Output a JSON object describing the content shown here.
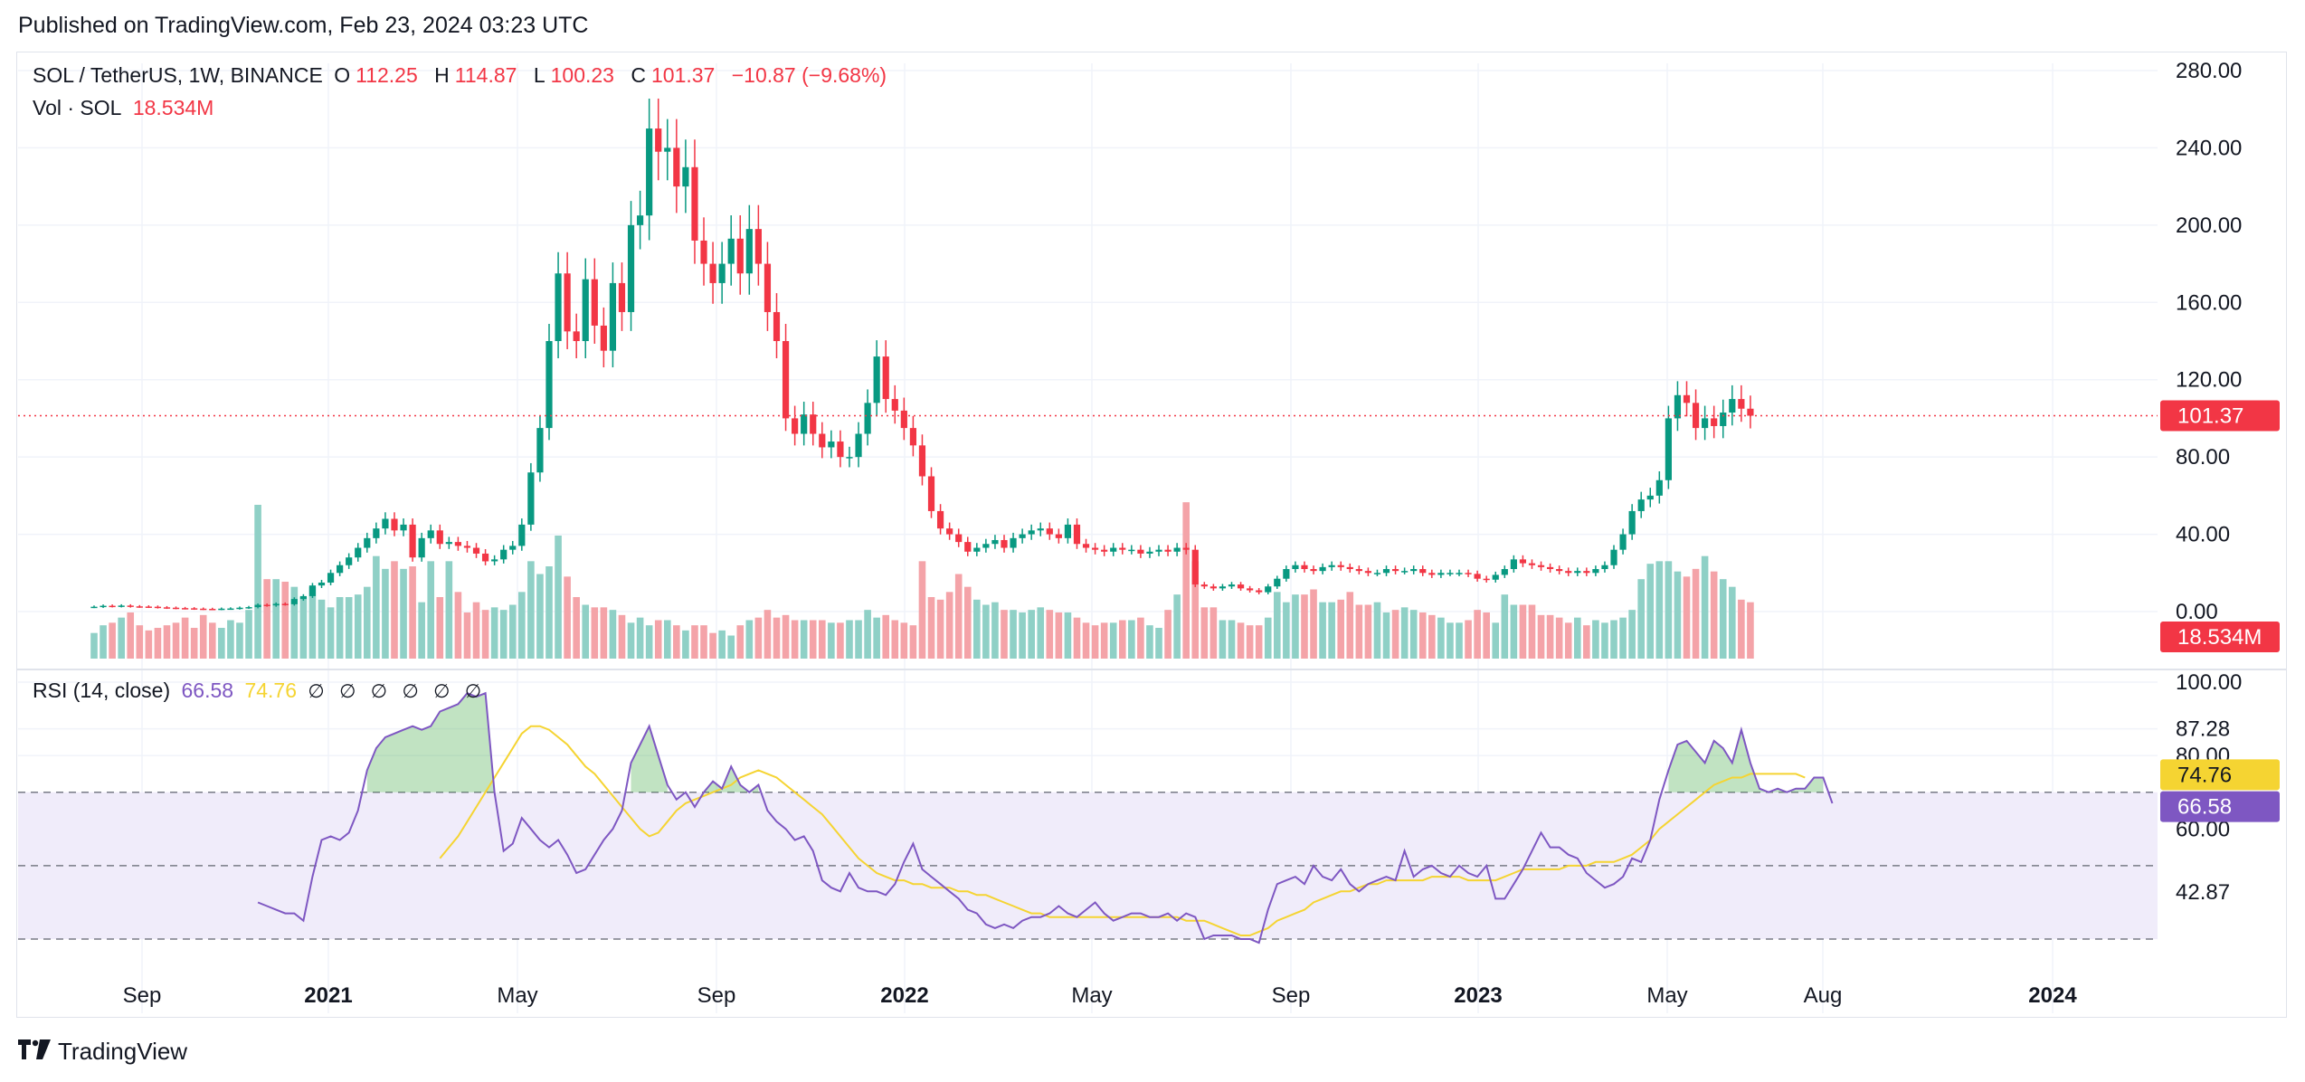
{
  "published": "Published on TradingView.com, Feb 23, 2024 03:23 UTC",
  "footer": {
    "brand": "TradingView",
    "logo_icon": "tradingview-logo-icon"
  },
  "legend": {
    "symbol": "SOL / TetherUS, 1W, BINANCE",
    "o_label": "O",
    "o_value": "112.25",
    "h_label": "H",
    "h_value": "114.87",
    "l_label": "L",
    "l_value": "100.23",
    "c_label": "C",
    "c_value": "101.37",
    "change": "−10.87 (−9.68%)",
    "vol_label": "Vol · SOL",
    "vol_value": "18.534M",
    "rsi_label": "RSI (14, close)",
    "rsi_value": "66.58",
    "rsi_ma_value": "74.76",
    "na_values": [
      "∅",
      "∅",
      "∅",
      "∅",
      "∅",
      "∅"
    ]
  },
  "colors": {
    "up": "#089981",
    "down": "#f23645",
    "up_vol": "#8fd0c6",
    "down_vol": "#f4a3a8",
    "rsi": "#7e57c2",
    "rsi_ma": "#f5d432",
    "band_fill": "#f0ecfa"
  },
  "chart_data": [
    {
      "type": "candlestick",
      "title": "SOL / TetherUS, 1W, BINANCE",
      "x_tick_labels": [
        "Sep",
        "2021",
        "May",
        "Sep",
        "2022",
        "May",
        "Sep",
        "2023",
        "May",
        "Aug",
        "2024"
      ],
      "y_tick_labels": [
        "280.00",
        "240.00",
        "200.00",
        "160.00",
        "120.00",
        "80.00",
        "40.00",
        "0.00"
      ],
      "ylim": [
        -20,
        290
      ],
      "last_price": 101.37,
      "last_price_label": "101.37",
      "volume_label": "18.534M",
      "weeks": 183,
      "closes": [
        2.5,
        3.0,
        2.8,
        3.1,
        2.7,
        2.6,
        2.5,
        2.2,
        2.0,
        1.8,
        1.7,
        1.5,
        1.4,
        1.3,
        1.5,
        1.6,
        2.0,
        2.3,
        3.5,
        3.2,
        4.0,
        3.8,
        6.5,
        8.0,
        13.5,
        15.0,
        20.0,
        24.0,
        28.0,
        33.0,
        38.0,
        43.0,
        48.0,
        42.0,
        45.0,
        28.0,
        38.0,
        42.0,
        35.0,
        36.0,
        34.0,
        33.0,
        30.0,
        26.0,
        27.0,
        32.0,
        34.0,
        45.0,
        72.0,
        95.0,
        140.0,
        175.0,
        145.0,
        140.0,
        172.0,
        148.0,
        135.0,
        170.0,
        155.0,
        200.0,
        205.0,
        250.0,
        238.0,
        240.0,
        220.0,
        230.0,
        192.0,
        180.0,
        170.0,
        180.0,
        193.0,
        175.0,
        198.0,
        180.0,
        155.0,
        140.0,
        100.0,
        92.0,
        102.0,
        92.0,
        85.0,
        88.0,
        80.0,
        80.0,
        92.0,
        108.0,
        132.0,
        110.0,
        104.0,
        95.0,
        86.0,
        70.0,
        52.0,
        43.0,
        40.0,
        36.0,
        31.0,
        33.0,
        35.0,
        37.0,
        33.0,
        38.0,
        40.0,
        42.0,
        43.0,
        40.0,
        38.0,
        45.0,
        35.0,
        33.0,
        32.0,
        31.0,
        33.0,
        32.0,
        32.0,
        30.0,
        31.0,
        32.0,
        31.0,
        33.0,
        32.0,
        14.0,
        13.0,
        12.0,
        13.0,
        14.0,
        12.0,
        11.0,
        10.0,
        13.0,
        17.0,
        22.0,
        24.0,
        22.0,
        21.0,
        23.0,
        24.0,
        23.0,
        22.0,
        21.0,
        20.0,
        20.0,
        22.0,
        21.0,
        21.0,
        22.0,
        20.0,
        19.0,
        20.0,
        20.0,
        20.0,
        19.5,
        17.0,
        16.5,
        19.0,
        22.0,
        27.0,
        25.0,
        24.0,
        23.0,
        22.0,
        21.0,
        20.0,
        21.0,
        20.0,
        22.0,
        24.0,
        32.0,
        40.0,
        52.0,
        58.0,
        60.0,
        68.0,
        100.0,
        112.0,
        108.0,
        95.0,
        100.0,
        96.0,
        103.0,
        110.0,
        105.0,
        101.37
      ],
      "volumes": [
        10,
        13,
        14,
        16,
        18,
        13,
        11,
        12,
        13,
        14,
        16,
        12,
        17,
        14,
        12,
        15,
        14,
        19,
        60,
        31,
        31,
        30,
        28,
        24,
        28,
        23,
        20,
        24,
        24,
        25,
        28,
        40,
        35,
        38,
        35,
        36,
        22,
        38,
        24,
        38,
        26,
        18,
        22,
        19,
        20,
        19,
        21,
        26,
        38,
        33,
        36,
        48,
        32,
        24,
        21,
        20,
        20,
        19,
        17,
        14,
        16,
        13,
        15,
        15,
        13,
        11,
        13,
        13,
        10,
        11,
        9,
        13,
        15,
        16,
        19,
        16,
        17,
        15,
        15,
        15,
        15,
        14,
        14,
        15,
        15,
        19,
        16,
        17,
        15,
        14,
        13,
        38,
        24,
        23,
        26,
        33,
        28,
        23,
        21,
        22,
        19,
        19,
        18,
        19,
        20,
        19,
        18,
        18,
        16,
        14,
        13,
        14,
        14,
        15,
        15,
        16,
        13,
        12,
        19,
        25,
        61,
        38,
        20,
        20,
        15,
        15,
        14,
        13,
        13,
        16,
        26,
        22,
        25,
        25,
        27,
        22,
        22,
        23,
        26,
        21,
        21,
        22,
        18,
        19,
        20,
        19,
        18,
        17,
        16,
        14,
        14,
        15,
        19,
        18,
        14,
        25,
        21,
        21,
        21,
        17,
        17,
        16,
        14,
        16,
        13,
        15,
        14,
        15,
        16,
        19,
        31,
        37,
        38,
        38,
        34,
        32,
        35,
        40,
        34,
        31,
        28,
        23,
        22,
        24,
        23,
        22,
        20,
        18.534
      ]
    },
    {
      "type": "line",
      "title": "RSI (14, close)",
      "y_tick_labels": [
        "100.00",
        "87.28",
        "80.00",
        "60.00",
        "42.87"
      ],
      "levels": [
        70,
        50,
        30
      ],
      "ylim": [
        20,
        100
      ],
      "series": [
        {
          "name": "RSI",
          "current_label": "66.58",
          "start_week": 18,
          "values": [
            40,
            39,
            38,
            37,
            37,
            35,
            47,
            57,
            58,
            57,
            59,
            65,
            76,
            82,
            85,
            86,
            87,
            88,
            87,
            88,
            92,
            93,
            94,
            97,
            96,
            97,
            70,
            54,
            56,
            63,
            60,
            57,
            55,
            57,
            53,
            48,
            49,
            53,
            57,
            60,
            65,
            78,
            83,
            88,
            80,
            72,
            68,
            70,
            66,
            70,
            73,
            71,
            77,
            72,
            70,
            72,
            65,
            62,
            60,
            57,
            58,
            54,
            46,
            44,
            43,
            48,
            44,
            43,
            43,
            42,
            45,
            51,
            56,
            49,
            47,
            45,
            43,
            41,
            38,
            37,
            34,
            33,
            34,
            33,
            35,
            36,
            36,
            37,
            39,
            37,
            36,
            38,
            40,
            37,
            35,
            36,
            37,
            37,
            36,
            36,
            37,
            35,
            37,
            36,
            30,
            31,
            31,
            31,
            30,
            30,
            29,
            38,
            45,
            46,
            47,
            45,
            50,
            47,
            46,
            49,
            45,
            43,
            45,
            46,
            47,
            46,
            54,
            47,
            49,
            50,
            48,
            47,
            50,
            48,
            47,
            50,
            41,
            41,
            45,
            49,
            54,
            59,
            55,
            55,
            53,
            52,
            48,
            46,
            44,
            45,
            47,
            52,
            51,
            57,
            68,
            76,
            83,
            84,
            81,
            78,
            84,
            82,
            78,
            87,
            78,
            71,
            70,
            71,
            70,
            71,
            71,
            74,
            74,
            67
          ]
        },
        {
          "name": "RSI-based MA",
          "current_label": "74.76",
          "start_week": 38,
          "values": [
            52,
            55,
            58,
            62,
            66,
            70,
            74,
            78,
            82,
            86,
            88,
            88,
            87,
            85,
            83,
            80,
            77,
            75,
            72,
            69,
            66,
            63,
            60,
            58,
            59,
            62,
            65,
            67,
            68,
            69,
            70,
            71,
            72,
            74,
            75,
            76,
            75,
            74,
            72,
            70,
            68,
            66,
            64,
            61,
            58,
            55,
            52,
            50,
            48,
            47,
            46,
            46,
            45,
            45,
            44,
            44,
            44,
            43,
            43,
            42,
            42,
            41,
            40,
            39,
            38,
            37,
            37,
            36,
            36,
            36,
            36,
            36,
            36,
            36,
            36,
            36,
            36,
            36,
            36,
            36,
            36,
            36,
            35,
            35,
            35,
            34,
            33,
            32,
            31,
            31,
            32,
            33,
            35,
            36,
            37,
            38,
            40,
            41,
            42,
            43,
            43,
            44,
            45,
            45,
            46,
            46,
            46,
            46,
            46,
            47,
            47,
            47,
            47,
            46,
            46,
            46,
            46,
            47,
            48,
            49,
            49,
            49,
            49,
            49,
            50,
            50,
            50,
            51,
            51,
            51,
            52,
            53,
            55,
            57,
            60,
            62,
            64,
            66,
            68,
            70,
            72,
            73,
            74,
            74,
            75,
            75,
            75,
            75,
            75,
            75,
            74
          ]
        }
      ]
    }
  ]
}
